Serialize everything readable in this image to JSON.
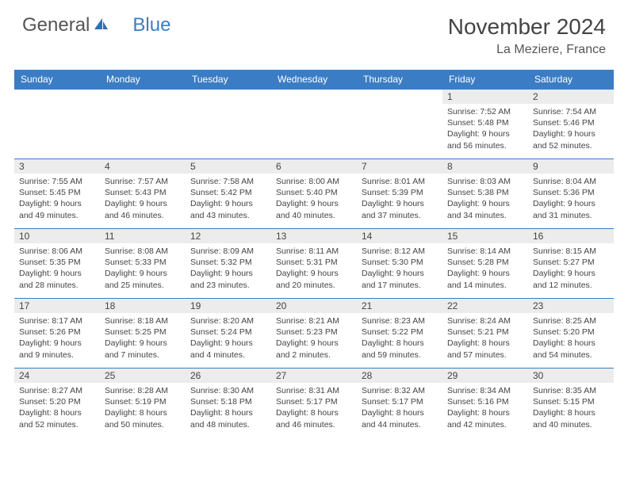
{
  "brand": {
    "part1": "General",
    "part2": "Blue"
  },
  "title": "November 2024",
  "location": "La Meziere, France",
  "colors": {
    "header_bg": "#3b7dc4",
    "header_text": "#ffffff",
    "daynum_bg": "#ececec",
    "border": "#3b7dc4",
    "text": "#444444",
    "background": "#ffffff"
  },
  "day_headers": [
    "Sunday",
    "Monday",
    "Tuesday",
    "Wednesday",
    "Thursday",
    "Friday",
    "Saturday"
  ],
  "weeks": [
    [
      {
        "n": "",
        "sunrise": "",
        "sunset": "",
        "daylight": ""
      },
      {
        "n": "",
        "sunrise": "",
        "sunset": "",
        "daylight": ""
      },
      {
        "n": "",
        "sunrise": "",
        "sunset": "",
        "daylight": ""
      },
      {
        "n": "",
        "sunrise": "",
        "sunset": "",
        "daylight": ""
      },
      {
        "n": "",
        "sunrise": "",
        "sunset": "",
        "daylight": ""
      },
      {
        "n": "1",
        "sunrise": "Sunrise: 7:52 AM",
        "sunset": "Sunset: 5:48 PM",
        "daylight": "Daylight: 9 hours and 56 minutes."
      },
      {
        "n": "2",
        "sunrise": "Sunrise: 7:54 AM",
        "sunset": "Sunset: 5:46 PM",
        "daylight": "Daylight: 9 hours and 52 minutes."
      }
    ],
    [
      {
        "n": "3",
        "sunrise": "Sunrise: 7:55 AM",
        "sunset": "Sunset: 5:45 PM",
        "daylight": "Daylight: 9 hours and 49 minutes."
      },
      {
        "n": "4",
        "sunrise": "Sunrise: 7:57 AM",
        "sunset": "Sunset: 5:43 PM",
        "daylight": "Daylight: 9 hours and 46 minutes."
      },
      {
        "n": "5",
        "sunrise": "Sunrise: 7:58 AM",
        "sunset": "Sunset: 5:42 PM",
        "daylight": "Daylight: 9 hours and 43 minutes."
      },
      {
        "n": "6",
        "sunrise": "Sunrise: 8:00 AM",
        "sunset": "Sunset: 5:40 PM",
        "daylight": "Daylight: 9 hours and 40 minutes."
      },
      {
        "n": "7",
        "sunrise": "Sunrise: 8:01 AM",
        "sunset": "Sunset: 5:39 PM",
        "daylight": "Daylight: 9 hours and 37 minutes."
      },
      {
        "n": "8",
        "sunrise": "Sunrise: 8:03 AM",
        "sunset": "Sunset: 5:38 PM",
        "daylight": "Daylight: 9 hours and 34 minutes."
      },
      {
        "n": "9",
        "sunrise": "Sunrise: 8:04 AM",
        "sunset": "Sunset: 5:36 PM",
        "daylight": "Daylight: 9 hours and 31 minutes."
      }
    ],
    [
      {
        "n": "10",
        "sunrise": "Sunrise: 8:06 AM",
        "sunset": "Sunset: 5:35 PM",
        "daylight": "Daylight: 9 hours and 28 minutes."
      },
      {
        "n": "11",
        "sunrise": "Sunrise: 8:08 AM",
        "sunset": "Sunset: 5:33 PM",
        "daylight": "Daylight: 9 hours and 25 minutes."
      },
      {
        "n": "12",
        "sunrise": "Sunrise: 8:09 AM",
        "sunset": "Sunset: 5:32 PM",
        "daylight": "Daylight: 9 hours and 23 minutes."
      },
      {
        "n": "13",
        "sunrise": "Sunrise: 8:11 AM",
        "sunset": "Sunset: 5:31 PM",
        "daylight": "Daylight: 9 hours and 20 minutes."
      },
      {
        "n": "14",
        "sunrise": "Sunrise: 8:12 AM",
        "sunset": "Sunset: 5:30 PM",
        "daylight": "Daylight: 9 hours and 17 minutes."
      },
      {
        "n": "15",
        "sunrise": "Sunrise: 8:14 AM",
        "sunset": "Sunset: 5:28 PM",
        "daylight": "Daylight: 9 hours and 14 minutes."
      },
      {
        "n": "16",
        "sunrise": "Sunrise: 8:15 AM",
        "sunset": "Sunset: 5:27 PM",
        "daylight": "Daylight: 9 hours and 12 minutes."
      }
    ],
    [
      {
        "n": "17",
        "sunrise": "Sunrise: 8:17 AM",
        "sunset": "Sunset: 5:26 PM",
        "daylight": "Daylight: 9 hours and 9 minutes."
      },
      {
        "n": "18",
        "sunrise": "Sunrise: 8:18 AM",
        "sunset": "Sunset: 5:25 PM",
        "daylight": "Daylight: 9 hours and 7 minutes."
      },
      {
        "n": "19",
        "sunrise": "Sunrise: 8:20 AM",
        "sunset": "Sunset: 5:24 PM",
        "daylight": "Daylight: 9 hours and 4 minutes."
      },
      {
        "n": "20",
        "sunrise": "Sunrise: 8:21 AM",
        "sunset": "Sunset: 5:23 PM",
        "daylight": "Daylight: 9 hours and 2 minutes."
      },
      {
        "n": "21",
        "sunrise": "Sunrise: 8:23 AM",
        "sunset": "Sunset: 5:22 PM",
        "daylight": "Daylight: 8 hours and 59 minutes."
      },
      {
        "n": "22",
        "sunrise": "Sunrise: 8:24 AM",
        "sunset": "Sunset: 5:21 PM",
        "daylight": "Daylight: 8 hours and 57 minutes."
      },
      {
        "n": "23",
        "sunrise": "Sunrise: 8:25 AM",
        "sunset": "Sunset: 5:20 PM",
        "daylight": "Daylight: 8 hours and 54 minutes."
      }
    ],
    [
      {
        "n": "24",
        "sunrise": "Sunrise: 8:27 AM",
        "sunset": "Sunset: 5:20 PM",
        "daylight": "Daylight: 8 hours and 52 minutes."
      },
      {
        "n": "25",
        "sunrise": "Sunrise: 8:28 AM",
        "sunset": "Sunset: 5:19 PM",
        "daylight": "Daylight: 8 hours and 50 minutes."
      },
      {
        "n": "26",
        "sunrise": "Sunrise: 8:30 AM",
        "sunset": "Sunset: 5:18 PM",
        "daylight": "Daylight: 8 hours and 48 minutes."
      },
      {
        "n": "27",
        "sunrise": "Sunrise: 8:31 AM",
        "sunset": "Sunset: 5:17 PM",
        "daylight": "Daylight: 8 hours and 46 minutes."
      },
      {
        "n": "28",
        "sunrise": "Sunrise: 8:32 AM",
        "sunset": "Sunset: 5:17 PM",
        "daylight": "Daylight: 8 hours and 44 minutes."
      },
      {
        "n": "29",
        "sunrise": "Sunrise: 8:34 AM",
        "sunset": "Sunset: 5:16 PM",
        "daylight": "Daylight: 8 hours and 42 minutes."
      },
      {
        "n": "30",
        "sunrise": "Sunrise: 8:35 AM",
        "sunset": "Sunset: 5:15 PM",
        "daylight": "Daylight: 8 hours and 40 minutes."
      }
    ]
  ]
}
